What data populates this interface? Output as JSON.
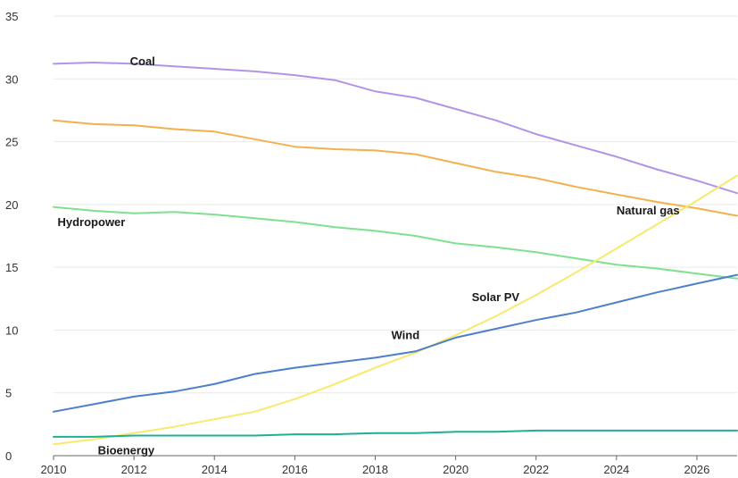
{
  "chart_data": {
    "type": "line",
    "title": "",
    "xlabel": "",
    "ylabel": "",
    "xlim": [
      2010,
      2027
    ],
    "ylim": [
      0,
      35
    ],
    "grid": true,
    "legend": "inline labels",
    "x": [
      2010,
      2011,
      2012,
      2013,
      2014,
      2015,
      2016,
      2017,
      2018,
      2019,
      2020,
      2021,
      2022,
      2023,
      2024,
      2025,
      2026,
      2027
    ],
    "x_ticks": [
      "2010",
      "2012",
      "2014",
      "2016",
      "2018",
      "2020",
      "2022",
      "2024",
      "2026"
    ],
    "y_ticks": [
      "0",
      "5",
      "10",
      "15",
      "20",
      "25",
      "30",
      "35"
    ],
    "series": [
      {
        "name": "Coal",
        "color": "#b294e6",
        "values": [
          31.2,
          31.3,
          31.2,
          31.0,
          30.8,
          30.6,
          30.3,
          29.9,
          29.0,
          28.5,
          27.6,
          26.7,
          25.6,
          24.7,
          23.8,
          22.8,
          21.9,
          20.9
        ]
      },
      {
        "name": "Natural gas",
        "color": "#f3b04f",
        "values": [
          26.7,
          26.4,
          26.3,
          26.0,
          25.8,
          25.2,
          24.6,
          24.4,
          24.3,
          24.0,
          23.3,
          22.6,
          22.1,
          21.4,
          20.8,
          20.2,
          19.7,
          19.1
        ]
      },
      {
        "name": "Hydropower",
        "color": "#7fe08f",
        "values": [
          19.8,
          19.5,
          19.3,
          19.4,
          19.2,
          18.9,
          18.6,
          18.2,
          17.9,
          17.5,
          16.9,
          16.6,
          16.2,
          15.7,
          15.2,
          14.9,
          14.5,
          14.1
        ]
      },
      {
        "name": "Solar PV",
        "color": "#f7ea6b",
        "values": [
          0.9,
          1.3,
          1.8,
          2.3,
          2.9,
          3.5,
          4.5,
          5.7,
          7.0,
          8.2,
          9.6,
          11.1,
          12.8,
          14.6,
          16.5,
          18.4,
          20.3,
          22.3
        ]
      },
      {
        "name": "Wind",
        "color": "#4d7fcc",
        "values": [
          3.5,
          4.1,
          4.7,
          5.1,
          5.7,
          6.5,
          7.0,
          7.4,
          7.8,
          8.3,
          9.4,
          10.1,
          10.8,
          11.4,
          12.2,
          13.0,
          13.7,
          14.4
        ]
      },
      {
        "name": "Bioenergy",
        "color": "#1eaf96",
        "values": [
          1.5,
          1.5,
          1.6,
          1.6,
          1.6,
          1.6,
          1.7,
          1.7,
          1.8,
          1.8,
          1.9,
          1.9,
          2.0,
          2.0,
          2.0,
          2.0,
          2.0,
          2.0
        ]
      }
    ],
    "annotations": [
      {
        "text": "Coal",
        "x": 2011.9,
        "y": 31.1
      },
      {
        "text": "Natural gas",
        "x": 2024.0,
        "y": 19.2
      },
      {
        "text": "Hydropower",
        "x": 2010.1,
        "y": 18.3
      },
      {
        "text": "Solar PV",
        "x": 2020.4,
        "y": 12.3
      },
      {
        "text": "Wind",
        "x": 2018.4,
        "y": 9.3
      },
      {
        "text": "Bioenergy",
        "x": 2011.1,
        "y": 0.1
      }
    ]
  }
}
